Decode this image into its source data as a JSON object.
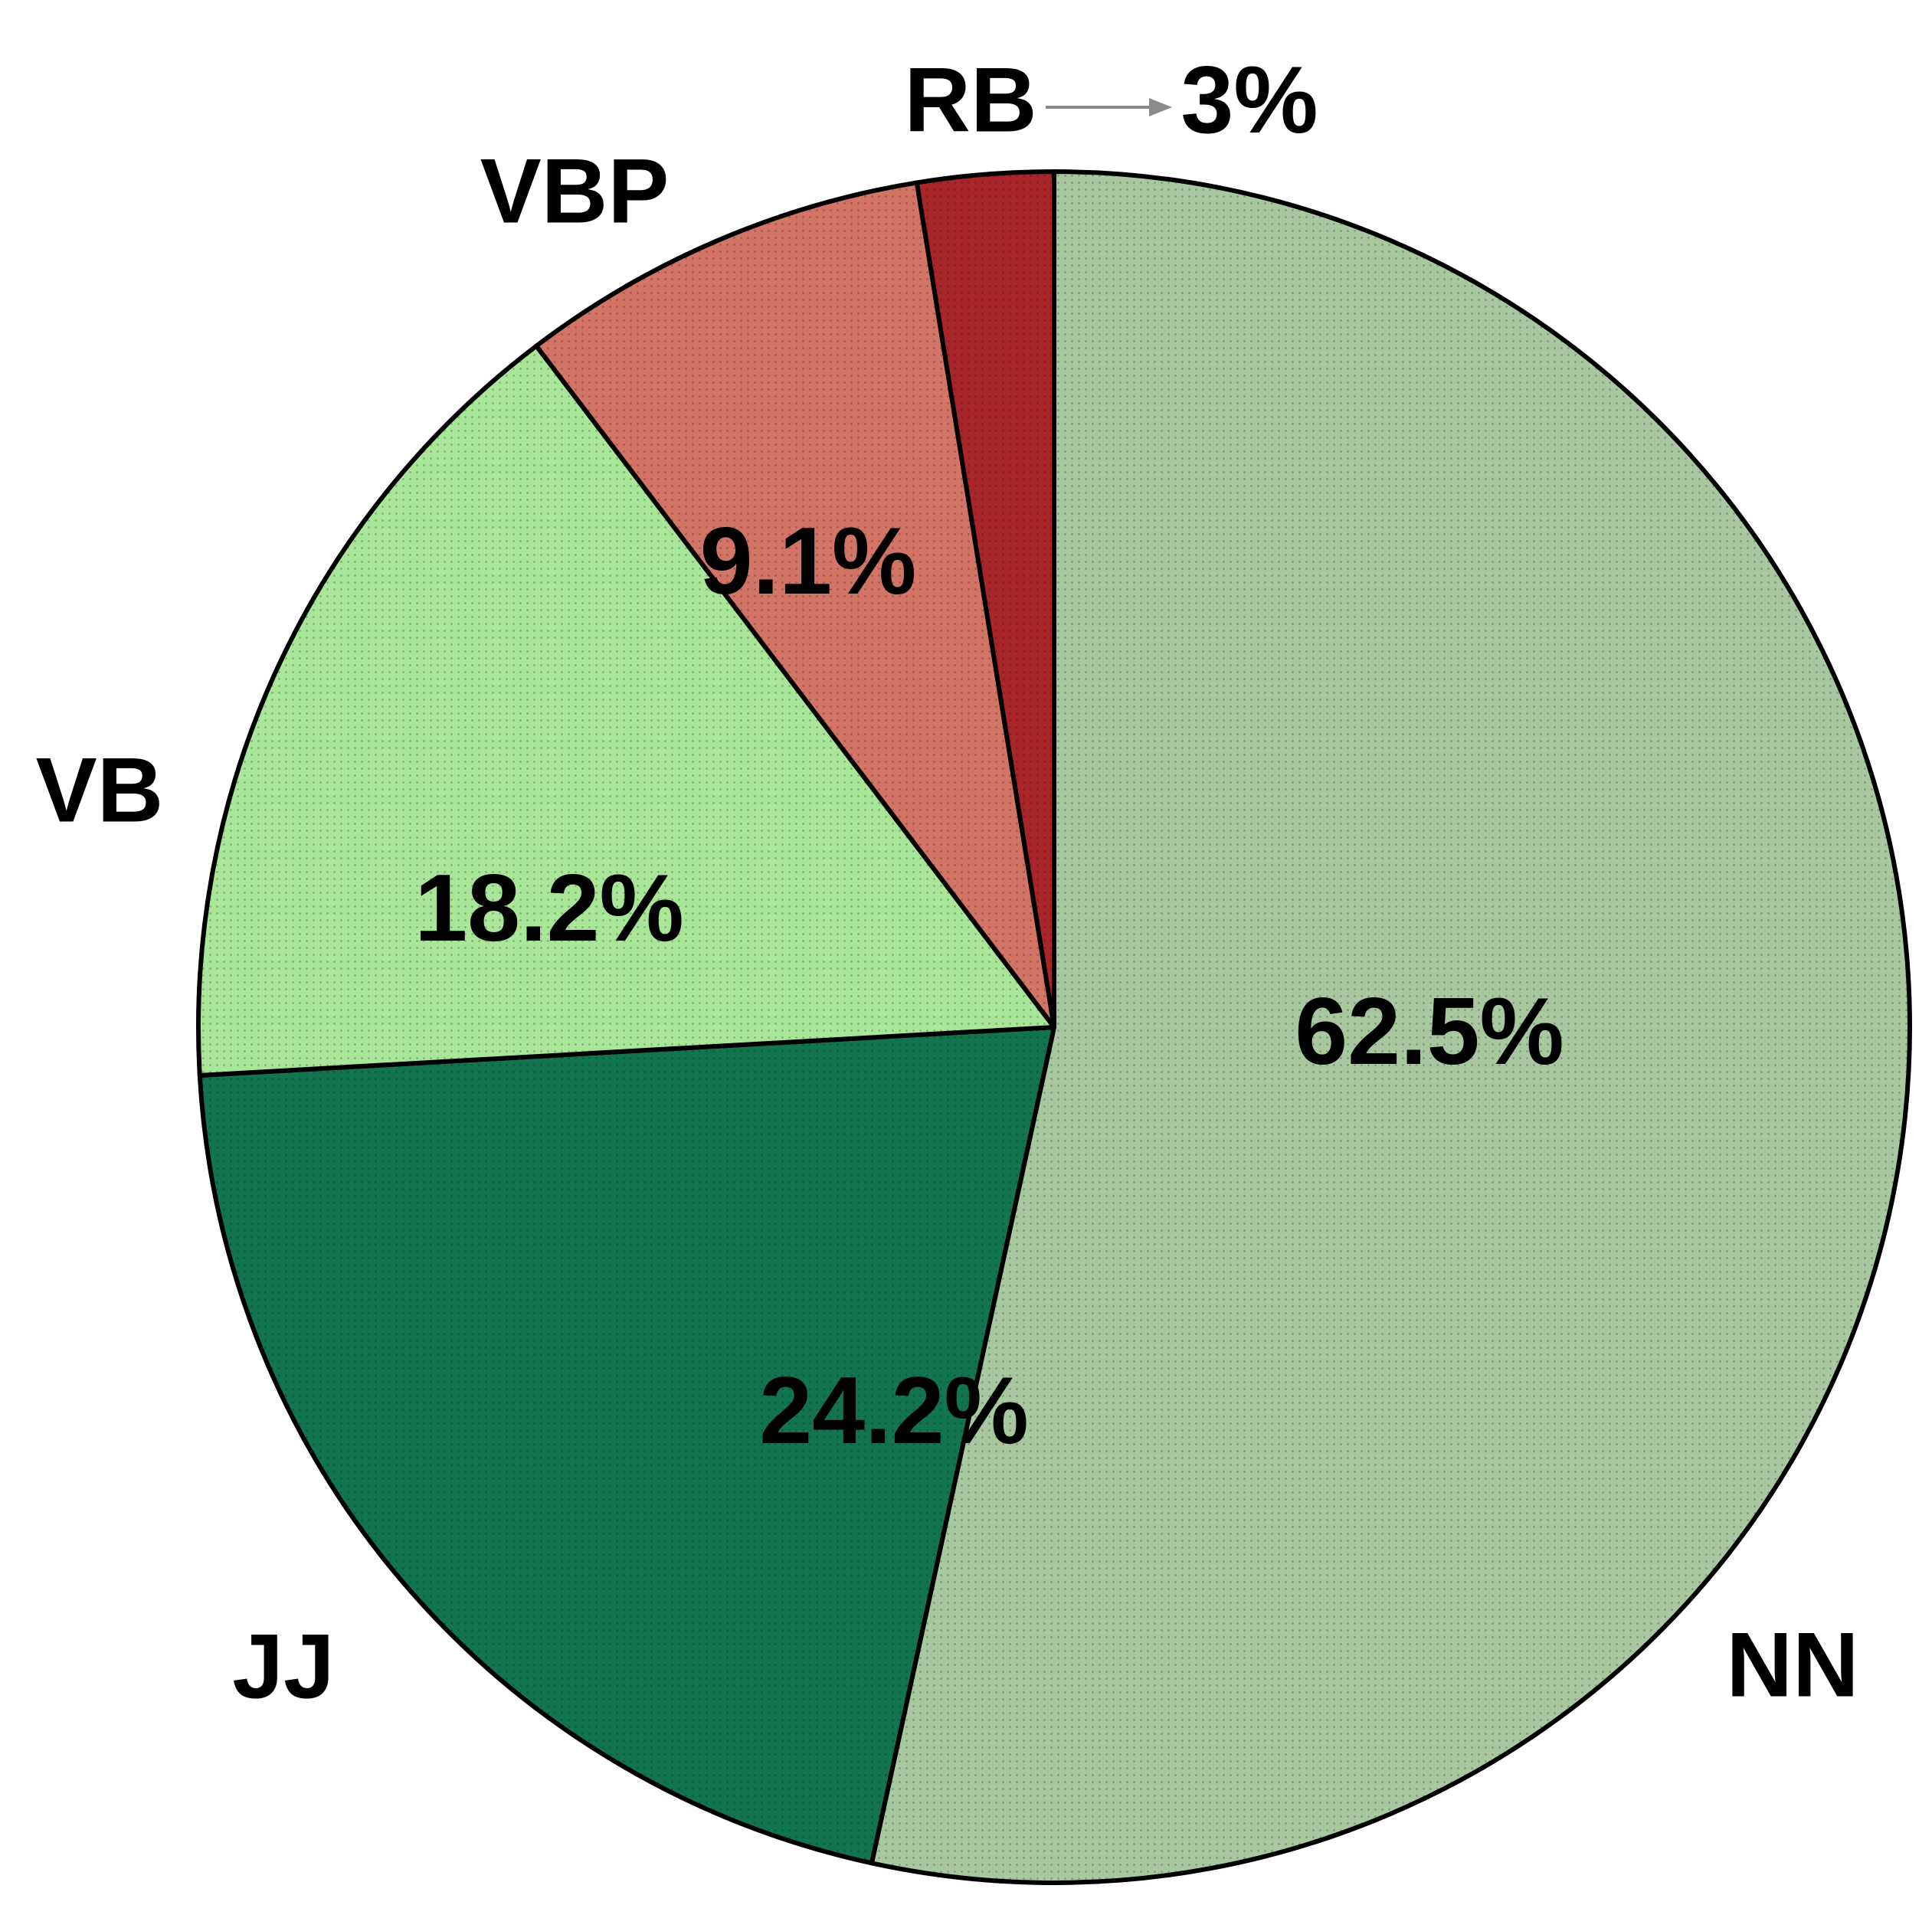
{
  "chart_data": {
    "type": "pie",
    "title": "",
    "start_angle_deg": 0,
    "direction": "clockwise",
    "slices": [
      {
        "label": "NN",
        "value": 62.5,
        "value_label": "62.5%",
        "color": "#a8c8a0"
      },
      {
        "label": "JJ",
        "value": 24.2,
        "value_label": "24.2%",
        "color": "#137550"
      },
      {
        "label": "VB",
        "value": 18.2,
        "value_label": "18.2%",
        "color": "#a9e69a"
      },
      {
        "label": "VBP",
        "value": 9.1,
        "value_label": "9.1%",
        "color": "#d27566"
      },
      {
        "label": "RB",
        "value": 3.0,
        "value_label": "3%",
        "color": "#a8262a"
      }
    ],
    "legend": "none",
    "edge_color": "#000000",
    "fill_pattern": "dotted"
  }
}
